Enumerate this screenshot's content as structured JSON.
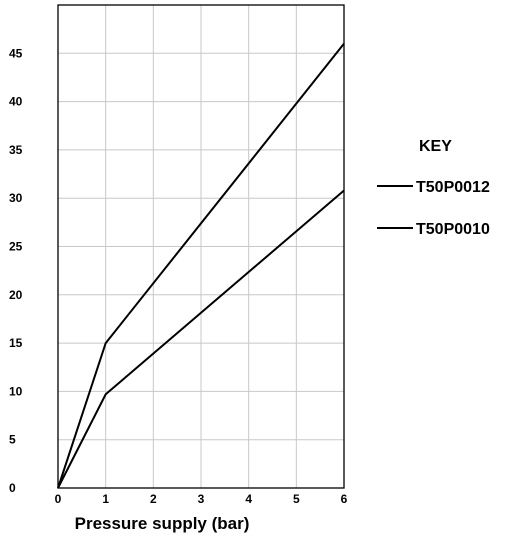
{
  "chart_data": {
    "type": "line",
    "title": "",
    "xlabel": "Pressure supply (bar)",
    "ylabel": "",
    "xlim": [
      0,
      6
    ],
    "ylim": [
      0,
      50
    ],
    "x_ticks": [
      0,
      1,
      2,
      3,
      4,
      5,
      6
    ],
    "y_ticks": [
      0,
      5,
      10,
      15,
      20,
      25,
      30,
      35,
      40,
      45
    ],
    "grid": true,
    "legend": {
      "title": "KEY",
      "placement": "right"
    },
    "series": [
      {
        "name": "T50P0012",
        "x": [
          0,
          1,
          6
        ],
        "y": [
          0,
          15,
          46
        ]
      },
      {
        "name": "T50P0010",
        "x": [
          0,
          1,
          6
        ],
        "y": [
          0,
          9.7,
          30.8
        ]
      }
    ]
  }
}
